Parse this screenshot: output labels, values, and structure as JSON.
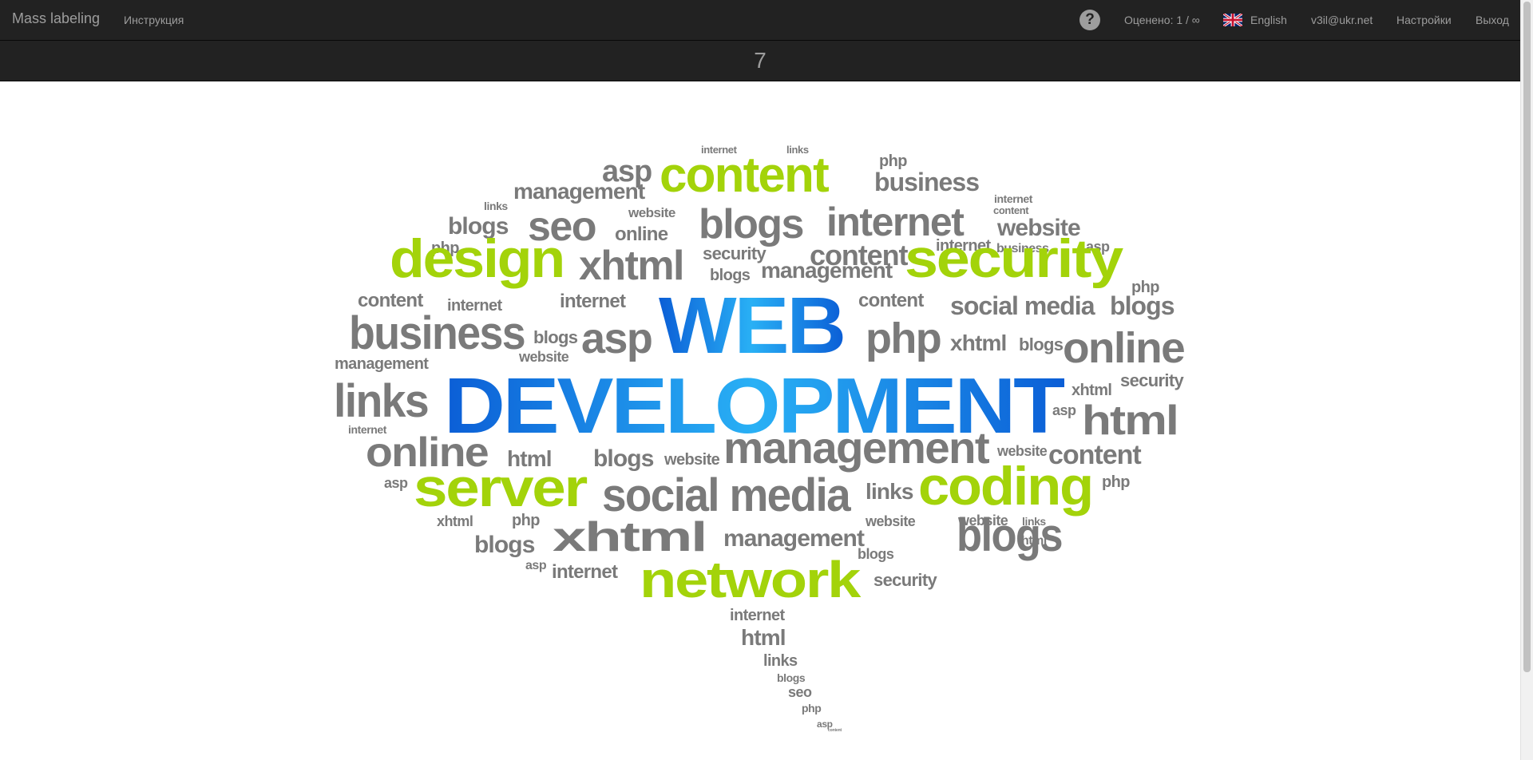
{
  "navbar": {
    "brand": "Mass labeling",
    "instructions": "Инструкция",
    "help_icon": "question-circle-icon",
    "rated": "Оценено: 1 / ∞",
    "language_flag_icon": "uk-flag-icon",
    "language": "English",
    "user_email": "v3il@ukr.net",
    "settings": "Настройки",
    "logout": "Выход"
  },
  "counter": "7",
  "word_cloud": {
    "colors": {
      "gray": "#7a7a7a",
      "green": "#a3d30a",
      "blue_dark": "#0b5ed6",
      "blue_light": "#29a9f0"
    },
    "words": [
      "internet",
      "links",
      "asp",
      "content",
      "php",
      "business",
      "management",
      "website",
      "internet",
      "content",
      "links",
      "blogs",
      "seo",
      "online",
      "blogs",
      "internet",
      "website",
      "php",
      "internet",
      "business",
      "asp",
      "design",
      "xhtml",
      "security",
      "management",
      "content",
      "security",
      "php",
      "blogs",
      "content",
      "internet",
      "internet",
      "content",
      "social media",
      "blogs",
      "business",
      "blogs",
      "asp",
      "WEB",
      "php",
      "xhtml",
      "blogs",
      "online",
      "website",
      "management",
      "security",
      "links",
      "DEVELOPMENT",
      "xhtml",
      "asp",
      "html",
      "internet",
      "online",
      "html",
      "blogs",
      "website",
      "management",
      "website",
      "content",
      "asp",
      "server",
      "social media",
      "links",
      "coding",
      "php",
      "xhtml",
      "php",
      "website",
      "management",
      "website",
      "xhtml",
      "links",
      "blogs",
      "html",
      "blogs",
      "asp",
      "internet",
      "network",
      "blogs",
      "security",
      "internet",
      "html",
      "links",
      "blogs",
      "seo",
      "php",
      "asp",
      "content"
    ]
  }
}
